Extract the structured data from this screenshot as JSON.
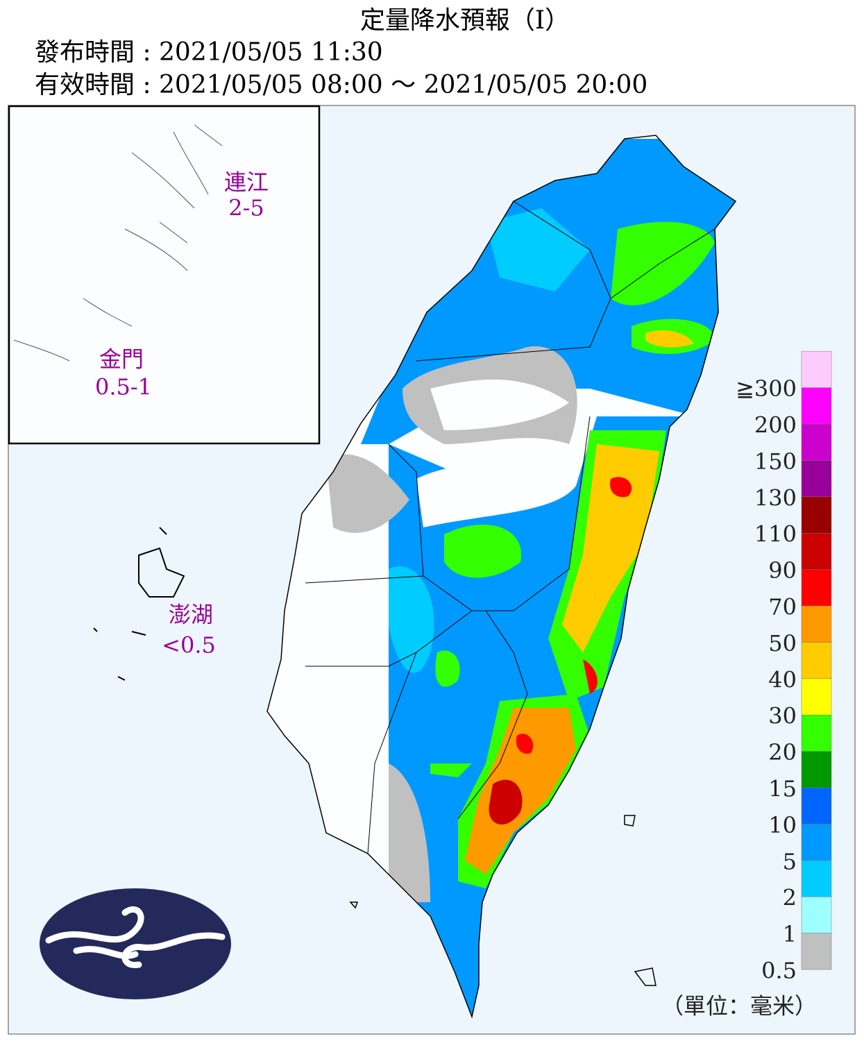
{
  "header": {
    "title": "定量降水預報（Ⅰ）",
    "issued": "發布時間 : 2021/05/05 11:30",
    "valid": "有效時間 : 2021/05/05 08:00 ～ 2021/05/05 20:00"
  },
  "inset": {
    "matsu": {
      "name": "連江",
      "range": "2-5"
    },
    "kinmen": {
      "name": "金門",
      "range": "0.5-1"
    }
  },
  "penghu": {
    "name": "澎湖",
    "range": "<0.5"
  },
  "legend": {
    "labels": [
      "0.5",
      "1",
      "2",
      "5",
      "10",
      "15",
      "20",
      "30",
      "40",
      "50",
      "70",
      "90",
      "110",
      "130",
      "150",
      "200",
      "≧300"
    ],
    "colors": [
      "#c0c0c0",
      "#9ffeff",
      "#00ccff",
      "#0099ff",
      "#0066ff",
      "#009900",
      "#33ff00",
      "#ffff00",
      "#ffcc00",
      "#ff9900",
      "#ff0000",
      "#cc0000",
      "#990000",
      "#990099",
      "#cc00cc",
      "#ff00ff",
      "#ffccff"
    ],
    "unit": "（單位：毫米）"
  }
}
